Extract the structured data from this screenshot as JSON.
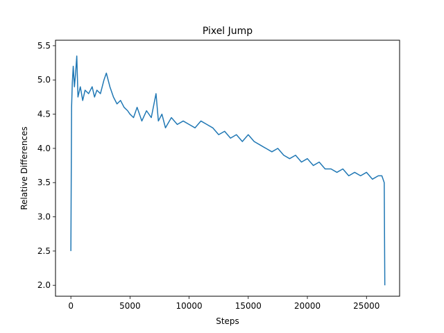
{
  "chart_data": {
    "type": "line",
    "title": "Pixel Jump",
    "xlabel": "Steps",
    "ylabel": "Relative Differences",
    "xlim": [
      -1300,
      27800
    ],
    "ylim": [
      1.84,
      5.58
    ],
    "grid": false,
    "legend": "none",
    "x_ticks": [
      0,
      5000,
      10000,
      15000,
      20000,
      25000
    ],
    "x_tick_labels": [
      "0",
      "5000",
      "10000",
      "15000",
      "20000",
      "25000"
    ],
    "y_ticks": [
      2.0,
      2.5,
      3.0,
      3.5,
      4.0,
      4.5,
      5.0,
      5.5
    ],
    "y_tick_labels": [
      "2.0",
      "2.5",
      "3.0",
      "3.5",
      "4.0",
      "4.5",
      "5.0",
      "5.5"
    ],
    "series": [
      {
        "color": "#1f77b4",
        "start_value": 2.5,
        "end_value": 2.0,
        "x": [
          0,
          60,
          120,
          200,
          300,
          400,
          500,
          600,
          800,
          1000,
          1200,
          1500,
          1800,
          2000,
          2200,
          2500,
          2800,
          3000,
          3300,
          3600,
          3900,
          4200,
          4500,
          4800,
          5000,
          5300,
          5600,
          6000,
          6400,
          6800,
          7200,
          7400,
          7700,
          8000,
          8500,
          9000,
          9500,
          10000,
          10500,
          11000,
          11500,
          12000,
          12500,
          13000,
          13500,
          14000,
          14500,
          15000,
          15500,
          16000,
          16500,
          17000,
          17500,
          18000,
          18500,
          19000,
          19500,
          20000,
          20500,
          21000,
          21500,
          22000,
          22500,
          23000,
          23500,
          24000,
          24500,
          25000,
          25500,
          26000,
          26300,
          26500,
          26550
        ],
        "y": [
          2.5,
          4.6,
          4.95,
          5.2,
          4.9,
          5.1,
          5.35,
          4.75,
          4.9,
          4.7,
          4.85,
          4.8,
          4.9,
          4.75,
          4.85,
          4.8,
          5.0,
          5.1,
          4.9,
          4.75,
          4.65,
          4.7,
          4.6,
          4.55,
          4.5,
          4.45,
          4.6,
          4.4,
          4.55,
          4.45,
          4.8,
          4.4,
          4.5,
          4.3,
          4.45,
          4.35,
          4.4,
          4.35,
          4.3,
          4.4,
          4.35,
          4.3,
          4.2,
          4.25,
          4.15,
          4.2,
          4.1,
          4.2,
          4.1,
          4.05,
          4.0,
          3.95,
          4.0,
          3.9,
          3.85,
          3.9,
          3.8,
          3.85,
          3.75,
          3.8,
          3.7,
          3.7,
          3.65,
          3.7,
          3.6,
          3.65,
          3.6,
          3.65,
          3.55,
          3.6,
          3.6,
          3.5,
          2.0
        ]
      }
    ]
  }
}
